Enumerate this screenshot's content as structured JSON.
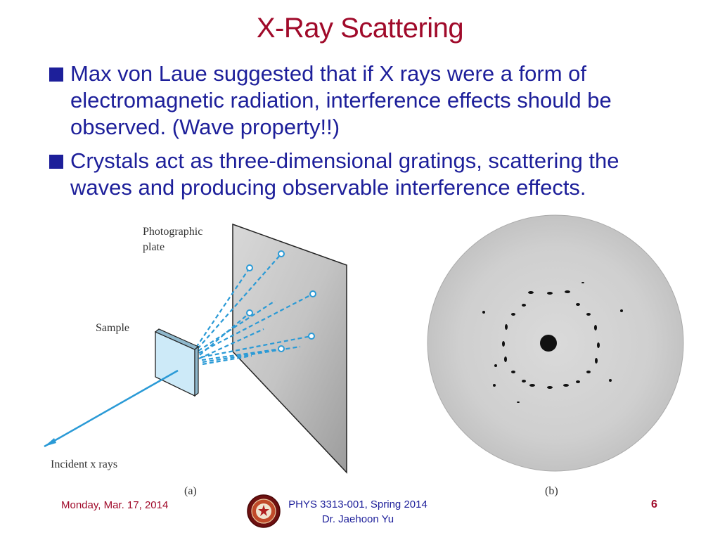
{
  "slide": {
    "title": "X-Ray Scattering",
    "bullets": [
      "Max von Laue suggested that if X rays were a form of electromagnetic radiation, interference effects should be observed. (Wave property!!)",
      "Crystals act as three-dimensional gratings, scattering the waves and producing observable interference effects."
    ]
  },
  "figure_a": {
    "label_plate_line1": "Photographic",
    "label_plate_line2": "plate",
    "label_sample": "Sample",
    "label_incident": "Incident x rays",
    "caption": "(a)",
    "colors": {
      "beam": "#2a9ad6",
      "sample": "#cdeaf8",
      "plate": "#b8b8b8"
    }
  },
  "figure_b": {
    "caption": "(b)"
  },
  "footer": {
    "date": "Monday, Mar. 17, 2014",
    "course_line1": "PHYS 3313-001, Spring 2014",
    "course_line2": "Dr. Jaehoon Yu",
    "page_number": "6",
    "logo_icon": "university-seal-icon"
  },
  "colors": {
    "title": "#a00a2a",
    "body_text": "#1d1f9a"
  }
}
